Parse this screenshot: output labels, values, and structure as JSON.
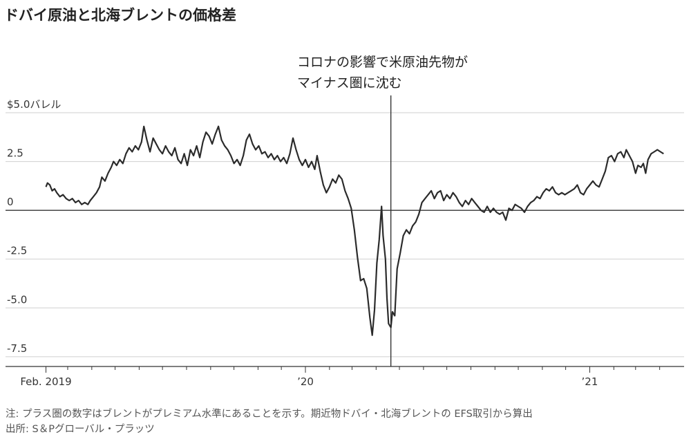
{
  "title": "ドバイ原油と北海ブレントの価格差",
  "notes": {
    "note": "注: プラス圏の数字はブレントがプレミアム水準にあることを示す。期近物ドバイ・北海ブレントの EFS取引から算出",
    "source": "出所: S＆Pグローバル・プラッツ"
  },
  "chart_data": {
    "type": "line",
    "title": "ドバイ原油と北海ブレントの価格差",
    "unit": "バレル",
    "ylim": [
      -8.0,
      5.0
    ],
    "xlim": [
      "2019-01-28",
      "2021-04-28"
    ],
    "y_ticks": [
      {
        "value": 5.0,
        "label": "$5.0バレル"
      },
      {
        "value": 2.5,
        "label": "2.5"
      },
      {
        "value": 0,
        "label": "0"
      },
      {
        "value": -2.5,
        "label": "-2.5"
      },
      {
        "value": -5.0,
        "label": "-5.0"
      },
      {
        "value": -7.5,
        "label": "-7.5"
      }
    ],
    "x_tick_labels": [
      {
        "date": "2019-02-01",
        "label": "Feb. 2019"
      },
      {
        "date": "2020-01-01",
        "label": "’20"
      },
      {
        "date": "2021-01-01",
        "label": "’21"
      }
    ],
    "grid": true,
    "annotation": {
      "date": "2020-04-20",
      "lines": [
        "コロナの影響で米原油先物が",
        "マイナス圏に沈む"
      ]
    },
    "series": [
      {
        "points": [
          [
            "2019-02-01",
            1.2
          ],
          [
            "2019-02-03",
            1.4
          ],
          [
            "2019-02-06",
            1.3
          ],
          [
            "2019-02-09",
            1.0
          ],
          [
            "2019-02-12",
            1.1
          ],
          [
            "2019-02-15",
            0.9
          ],
          [
            "2019-02-19",
            0.7
          ],
          [
            "2019-02-23",
            0.8
          ],
          [
            "2019-02-27",
            0.6
          ],
          [
            "2019-03-03",
            0.5
          ],
          [
            "2019-03-07",
            0.6
          ],
          [
            "2019-03-11",
            0.4
          ],
          [
            "2019-03-15",
            0.5
          ],
          [
            "2019-03-19",
            0.3
          ],
          [
            "2019-03-23",
            0.4
          ],
          [
            "2019-03-27",
            0.3
          ],
          [
            "2019-03-30",
            0.5
          ],
          [
            "2019-04-03",
            0.7
          ],
          [
            "2019-04-07",
            0.9
          ],
          [
            "2019-04-11",
            1.2
          ],
          [
            "2019-04-14",
            1.7
          ],
          [
            "2019-04-18",
            1.5
          ],
          [
            "2019-04-22",
            1.9
          ],
          [
            "2019-04-26",
            2.2
          ],
          [
            "2019-04-29",
            2.5
          ],
          [
            "2019-05-03",
            2.3
          ],
          [
            "2019-05-07",
            2.6
          ],
          [
            "2019-05-11",
            2.4
          ],
          [
            "2019-05-15",
            2.9
          ],
          [
            "2019-05-19",
            3.2
          ],
          [
            "2019-05-23",
            3.0
          ],
          [
            "2019-05-27",
            3.3
          ],
          [
            "2019-05-31",
            3.1
          ],
          [
            "2019-06-04",
            3.5
          ],
          [
            "2019-06-07",
            4.3
          ],
          [
            "2019-06-11",
            3.6
          ],
          [
            "2019-06-15",
            3.0
          ],
          [
            "2019-06-19",
            3.7
          ],
          [
            "2019-06-23",
            3.4
          ],
          [
            "2019-06-27",
            3.1
          ],
          [
            "2019-07-01",
            2.9
          ],
          [
            "2019-07-05",
            3.3
          ],
          [
            "2019-07-09",
            3.0
          ],
          [
            "2019-07-13",
            2.8
          ],
          [
            "2019-07-17",
            3.2
          ],
          [
            "2019-07-21",
            2.6
          ],
          [
            "2019-07-25",
            2.4
          ],
          [
            "2019-07-29",
            2.9
          ],
          [
            "2019-08-02",
            2.3
          ],
          [
            "2019-08-06",
            3.1
          ],
          [
            "2019-08-10",
            2.8
          ],
          [
            "2019-08-14",
            3.3
          ],
          [
            "2019-08-18",
            2.7
          ],
          [
            "2019-08-22",
            3.5
          ],
          [
            "2019-08-26",
            4.0
          ],
          [
            "2019-08-30",
            3.8
          ],
          [
            "2019-09-03",
            3.4
          ],
          [
            "2019-09-07",
            3.9
          ],
          [
            "2019-09-11",
            4.3
          ],
          [
            "2019-09-15",
            3.6
          ],
          [
            "2019-09-19",
            3.3
          ],
          [
            "2019-09-23",
            3.1
          ],
          [
            "2019-09-27",
            2.8
          ],
          [
            "2019-10-01",
            2.4
          ],
          [
            "2019-10-05",
            2.6
          ],
          [
            "2019-10-09",
            2.3
          ],
          [
            "2019-10-13",
            2.8
          ],
          [
            "2019-10-17",
            3.6
          ],
          [
            "2019-10-21",
            3.9
          ],
          [
            "2019-10-25",
            3.4
          ],
          [
            "2019-10-29",
            3.1
          ],
          [
            "2019-11-02",
            3.3
          ],
          [
            "2019-11-06",
            2.9
          ],
          [
            "2019-11-10",
            3.0
          ],
          [
            "2019-11-14",
            2.7
          ],
          [
            "2019-11-18",
            2.9
          ],
          [
            "2019-11-22",
            2.6
          ],
          [
            "2019-11-26",
            2.8
          ],
          [
            "2019-11-30",
            2.5
          ],
          [
            "2019-12-04",
            2.7
          ],
          [
            "2019-12-08",
            2.4
          ],
          [
            "2019-12-12",
            2.9
          ],
          [
            "2019-12-16",
            3.7
          ],
          [
            "2019-12-20",
            3.1
          ],
          [
            "2019-12-24",
            2.6
          ],
          [
            "2019-12-28",
            2.3
          ],
          [
            "2020-01-01",
            2.6
          ],
          [
            "2020-01-05",
            2.2
          ],
          [
            "2020-01-09",
            2.5
          ],
          [
            "2020-01-13",
            2.1
          ],
          [
            "2020-01-16",
            2.8
          ],
          [
            "2020-01-20",
            2.0
          ],
          [
            "2020-01-24",
            1.3
          ],
          [
            "2020-01-28",
            0.9
          ],
          [
            "2020-02-01",
            1.2
          ],
          [
            "2020-02-05",
            1.6
          ],
          [
            "2020-02-09",
            1.4
          ],
          [
            "2020-02-13",
            1.8
          ],
          [
            "2020-02-17",
            1.6
          ],
          [
            "2020-02-21",
            1.0
          ],
          [
            "2020-02-25",
            0.6
          ],
          [
            "2020-02-29",
            0.1
          ],
          [
            "2020-03-04",
            -1.0
          ],
          [
            "2020-03-08",
            -2.4
          ],
          [
            "2020-03-12",
            -3.6
          ],
          [
            "2020-03-16",
            -3.5
          ],
          [
            "2020-03-20",
            -4.0
          ],
          [
            "2020-03-24",
            -5.5
          ],
          [
            "2020-03-27",
            -6.4
          ],
          [
            "2020-03-30",
            -5.1
          ],
          [
            "2020-04-02",
            -2.7
          ],
          [
            "2020-04-05",
            -1.5
          ],
          [
            "2020-04-08",
            0.2
          ],
          [
            "2020-04-10",
            -1.3
          ],
          [
            "2020-04-13",
            -2.5
          ],
          [
            "2020-04-15",
            -4.5
          ],
          [
            "2020-04-17",
            -5.8
          ],
          [
            "2020-04-20",
            -6.0
          ],
          [
            "2020-04-22",
            -5.2
          ],
          [
            "2020-04-25",
            -5.4
          ],
          [
            "2020-04-28",
            -3.0
          ],
          [
            "2020-05-02",
            -2.2
          ],
          [
            "2020-05-06",
            -1.3
          ],
          [
            "2020-05-10",
            -1.0
          ],
          [
            "2020-05-14",
            -1.2
          ],
          [
            "2020-05-18",
            -0.8
          ],
          [
            "2020-05-22",
            -0.6
          ],
          [
            "2020-05-26",
            -0.2
          ],
          [
            "2020-05-30",
            0.4
          ],
          [
            "2020-06-03",
            0.6
          ],
          [
            "2020-06-07",
            0.8
          ],
          [
            "2020-06-11",
            1.0
          ],
          [
            "2020-06-15",
            0.6
          ],
          [
            "2020-06-19",
            0.9
          ],
          [
            "2020-06-23",
            1.0
          ],
          [
            "2020-06-27",
            0.5
          ],
          [
            "2020-07-01",
            0.8
          ],
          [
            "2020-07-05",
            0.6
          ],
          [
            "2020-07-09",
            0.9
          ],
          [
            "2020-07-13",
            0.7
          ],
          [
            "2020-07-17",
            0.4
          ],
          [
            "2020-07-21",
            0.2
          ],
          [
            "2020-07-25",
            0.5
          ],
          [
            "2020-07-29",
            0.3
          ],
          [
            "2020-08-02",
            0.6
          ],
          [
            "2020-08-06",
            0.4
          ],
          [
            "2020-08-10",
            0.2
          ],
          [
            "2020-08-14",
            0.0
          ],
          [
            "2020-08-18",
            -0.1
          ],
          [
            "2020-08-22",
            0.2
          ],
          [
            "2020-08-26",
            -0.1
          ],
          [
            "2020-08-30",
            0.1
          ],
          [
            "2020-09-03",
            -0.1
          ],
          [
            "2020-09-07",
            -0.2
          ],
          [
            "2020-09-11",
            -0.1
          ],
          [
            "2020-09-15",
            -0.5
          ],
          [
            "2020-09-19",
            0.1
          ],
          [
            "2020-09-23",
            0.0
          ],
          [
            "2020-09-27",
            0.3
          ],
          [
            "2020-10-01",
            0.2
          ],
          [
            "2020-10-05",
            0.1
          ],
          [
            "2020-10-09",
            -0.1
          ],
          [
            "2020-10-13",
            0.2
          ],
          [
            "2020-10-17",
            0.4
          ],
          [
            "2020-10-21",
            0.5
          ],
          [
            "2020-10-25",
            0.7
          ],
          [
            "2020-10-29",
            0.6
          ],
          [
            "2020-11-02",
            0.9
          ],
          [
            "2020-11-06",
            1.1
          ],
          [
            "2020-11-10",
            1.0
          ],
          [
            "2020-11-14",
            1.2
          ],
          [
            "2020-11-18",
            0.9
          ],
          [
            "2020-11-22",
            0.8
          ],
          [
            "2020-11-26",
            0.9
          ],
          [
            "2020-11-30",
            0.8
          ],
          [
            "2020-12-04",
            0.9
          ],
          [
            "2020-12-08",
            1.0
          ],
          [
            "2020-12-12",
            1.1
          ],
          [
            "2020-12-16",
            1.3
          ],
          [
            "2020-12-20",
            0.9
          ],
          [
            "2020-12-24",
            0.8
          ],
          [
            "2020-12-28",
            1.1
          ],
          [
            "2021-01-01",
            1.3
          ],
          [
            "2021-01-05",
            1.5
          ],
          [
            "2021-01-09",
            1.3
          ],
          [
            "2021-01-13",
            1.2
          ],
          [
            "2021-01-17",
            1.6
          ],
          [
            "2021-01-21",
            2.0
          ],
          [
            "2021-01-25",
            2.7
          ],
          [
            "2021-01-29",
            2.8
          ],
          [
            "2021-02-02",
            2.5
          ],
          [
            "2021-02-06",
            2.9
          ],
          [
            "2021-02-10",
            3.0
          ],
          [
            "2021-02-14",
            2.7
          ],
          [
            "2021-02-17",
            3.1
          ],
          [
            "2021-02-21",
            2.8
          ],
          [
            "2021-02-25",
            2.5
          ],
          [
            "2021-03-01",
            1.9
          ],
          [
            "2021-03-04",
            2.3
          ],
          [
            "2021-03-08",
            2.2
          ],
          [
            "2021-03-11",
            2.4
          ],
          [
            "2021-03-14",
            1.9
          ],
          [
            "2021-03-17",
            2.6
          ],
          [
            "2021-03-21",
            2.9
          ],
          [
            "2021-03-25",
            3.0
          ],
          [
            "2021-03-29",
            3.1
          ],
          [
            "2021-04-02",
            3.0
          ],
          [
            "2021-04-06",
            2.9
          ]
        ]
      }
    ]
  }
}
